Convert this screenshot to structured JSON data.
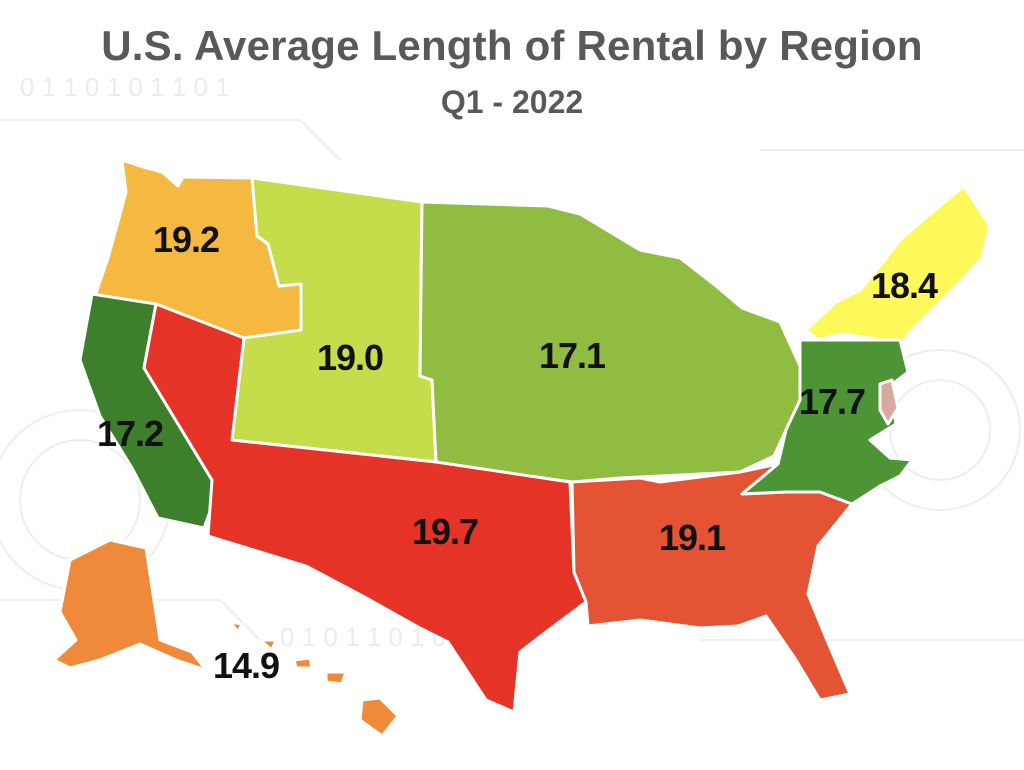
{
  "title": "U.S. Average Length of Rental by Region",
  "subtitle": "Q1 - 2022",
  "background_digits": "0 1 1 0 1 0 1 1 0 1",
  "regions": {
    "northwest": {
      "value": "19.2",
      "color": "#f5b942"
    },
    "mountain": {
      "value": "19.0",
      "color": "#c5dc4b"
    },
    "central": {
      "value": "17.1",
      "color": "#8fbc41"
    },
    "northeast": {
      "value": "18.4",
      "color": "#fdf95a"
    },
    "california": {
      "value": "17.2",
      "color": "#3d7f2a"
    },
    "southwest": {
      "value": "19.7",
      "color": "#e53328"
    },
    "southeast": {
      "value": "19.1",
      "color": "#e55335"
    },
    "mid_atlantic": {
      "value": "17.7",
      "color": "#4d9436"
    },
    "alaska_hawaii": {
      "value": "14.9",
      "color": "#ef8a3b"
    },
    "delaware": {
      "value": "",
      "color": "#d6a9a3"
    }
  }
}
